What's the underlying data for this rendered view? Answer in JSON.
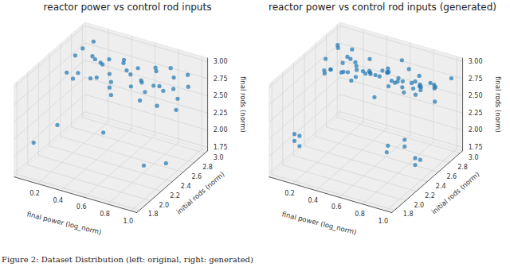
{
  "caption": "Figure 2: Dataset Distribution (left: original, right: generated)",
  "chart_data": [
    {
      "type": "scatter",
      "title": "reactor power vs control rod inputs",
      "xlabel": "final power (log_norm)",
      "ylabel": "initial rods (norm)",
      "zlabel": "final rods (norm)",
      "color": "#1f77b4",
      "xlim": [
        0.0,
        1.05
      ],
      "ylim": [
        1.75,
        3.05
      ],
      "zlim": [
        1.7,
        3.05
      ],
      "xticks": [
        0.2,
        0.4,
        0.6,
        0.8,
        {
          "value": 1,
          "label": "1.0"
        }
      ],
      "yticks": [
        1.8,
        {
          "value": 2,
          "label": "2.0"
        },
        2.2,
        2.4,
        2.6,
        2.8,
        {
          "value": 3,
          "label": "3.0"
        }
      ],
      "zticks": [
        1.75,
        {
          "value": 2,
          "label": "2.00"
        },
        2.25,
        {
          "value": 2.5,
          "label": "2.50"
        },
        2.75,
        {
          "value": 3,
          "label": "3.00"
        }
      ],
      "x": [
        0.05,
        0.08,
        0.1,
        0.12,
        0.15,
        0.18,
        0.2,
        0.22,
        0.25,
        0.28,
        0.3,
        0.32,
        0.35,
        0.38,
        0.4,
        0.42,
        0.45,
        0.48,
        0.5,
        0.52,
        0.55,
        0.58,
        0.6,
        0.62,
        0.65,
        0.68,
        0.7,
        0.72,
        0.75,
        0.78,
        0.8,
        0.82,
        0.85,
        0.88,
        0.9,
        0.92,
        0.95,
        0.98,
        1.0,
        0.05,
        0.9,
        0.95,
        0.85,
        0.6,
        0.3
      ],
      "y": [
        2.9,
        2.7,
        2.5,
        2.95,
        2.6,
        2.8,
        2.4,
        2.9,
        2.7,
        2.55,
        2.85,
        2.65,
        2.75,
        2.45,
        2.9,
        2.6,
        2.8,
        2.5,
        2.95,
        2.7,
        2.35,
        2.85,
        2.6,
        2.75,
        2.5,
        2.9,
        2.65,
        2.8,
        2.45,
        2.95,
        2.7,
        2.55,
        2.85,
        2.6,
        2.75,
        2.4,
        2.9,
        2.65,
        2.8,
        2.0,
        2.2,
        2.5,
        2.9,
        2.1,
        1.9
      ],
      "z": [
        2.8,
        2.85,
        2.75,
        2.9,
        2.7,
        2.82,
        2.78,
        2.65,
        2.88,
        2.72,
        2.8,
        2.9,
        2.68,
        2.85,
        2.76,
        2.62,
        2.9,
        2.8,
        2.7,
        2.85,
        2.75,
        2.6,
        2.9,
        2.72,
        2.82,
        2.78,
        2.66,
        2.92,
        2.7,
        2.84,
        2.76,
        2.88,
        2.64,
        2.8,
        2.9,
        2.74,
        2.86,
        2.7,
        2.78,
        2.05,
        2.0,
        1.85,
        2.3,
        2.4,
        2.5
      ]
    },
    {
      "type": "scatter",
      "title": "reactor power vs control rod inputs (generated)",
      "xlabel": "final power (log_norm)",
      "ylabel": "initial rods (norm)",
      "zlabel": "final rods (norm)",
      "color": "#1f77b4",
      "xlim": [
        0.0,
        1.05
      ],
      "ylim": [
        1.75,
        3.05
      ],
      "zlim": [
        1.7,
        3.05
      ],
      "xticks": [
        0.2,
        0.4,
        0.6,
        0.8,
        {
          "value": 1,
          "label": "1.0"
        }
      ],
      "yticks": [
        1.8,
        {
          "value": 2,
          "label": "2.0"
        },
        2.2,
        2.4,
        2.6,
        2.8,
        {
          "value": 3,
          "label": "3.0"
        }
      ],
      "zticks": [
        1.75,
        {
          "value": 2,
          "label": "2.00"
        },
        2.25,
        {
          "value": 2.5,
          "label": "2.50"
        },
        2.75,
        {
          "value": 3,
          "label": "3.00"
        }
      ],
      "x": [
        0.05,
        0.075,
        0.1,
        0.125,
        0.15,
        0.175,
        0.2,
        0.225,
        0.25,
        0.275,
        0.3,
        0.325,
        0.35,
        0.375,
        0.4,
        0.425,
        0.45,
        0.475,
        0.5,
        0.525,
        0.55,
        0.575,
        0.6,
        0.625,
        0.65,
        0.675,
        0.7,
        0.725,
        0.75,
        0.775,
        0.8,
        0.825,
        0.85,
        0.875,
        0.9,
        0.925,
        0.95,
        0.975,
        1.0,
        0.06,
        0.11,
        0.16,
        0.21,
        0.26,
        0.31,
        0.36,
        0.41,
        0.46,
        0.51,
        0.56,
        0.61,
        0.66,
        0.71,
        0.76,
        0.81,
        0.86,
        0.91,
        0.96,
        0.1,
        0.1,
        0.12,
        0.12,
        0.75,
        0.76,
        0.9,
        0.9,
        0.92,
        0.95,
        0.95
      ],
      "y": [
        2.9,
        2.6,
        2.8,
        2.5,
        2.95,
        2.7,
        2.45,
        2.85,
        2.65,
        2.75,
        2.55,
        2.9,
        2.6,
        2.8,
        2.4,
        2.7,
        2.95,
        2.5,
        2.85,
        2.65,
        2.75,
        2.45,
        2.9,
        2.6,
        2.8,
        2.55,
        2.7,
        2.95,
        2.5,
        2.85,
        2.65,
        2.75,
        2.4,
        2.9,
        2.6,
        2.8,
        2.5,
        2.7,
        2.95,
        2.75,
        2.55,
        2.9,
        2.65,
        2.8,
        2.45,
        2.7,
        2.95,
        2.6,
        2.85,
        2.5,
        2.75,
        2.9,
        2.6,
        2.8,
        2.7,
        2.55,
        2.85,
        2.65,
        2.0,
        2.0,
        2.05,
        2.05,
        2.3,
        2.3,
        2.5,
        2.5,
        2.55,
        2.2,
        2.2
      ],
      "z": [
        2.85,
        2.7,
        2.9,
        2.75,
        2.8,
        2.65,
        2.88,
        2.72,
        2.95,
        2.6,
        2.82,
        2.78,
        2.9,
        2.68,
        2.85,
        2.75,
        2.62,
        2.92,
        2.7,
        2.8,
        2.86,
        2.66,
        2.9,
        2.74,
        2.6,
        2.88,
        2.78,
        2.7,
        2.94,
        2.64,
        2.84,
        2.76,
        2.9,
        2.68,
        2.82,
        2.72,
        2.96,
        2.62,
        2.8,
        2.6,
        2.92,
        2.7,
        2.84,
        2.66,
        2.9,
        2.76,
        2.62,
        2.88,
        2.72,
        2.94,
        2.68,
        2.8,
        2.9,
        2.74,
        2.64,
        2.86,
        2.7,
        2.92,
        2.1,
        2.2,
        2.0,
        2.15,
        2.05,
        2.15,
        1.8,
        1.9,
        1.85,
        2.3,
        2.4
      ]
    }
  ]
}
